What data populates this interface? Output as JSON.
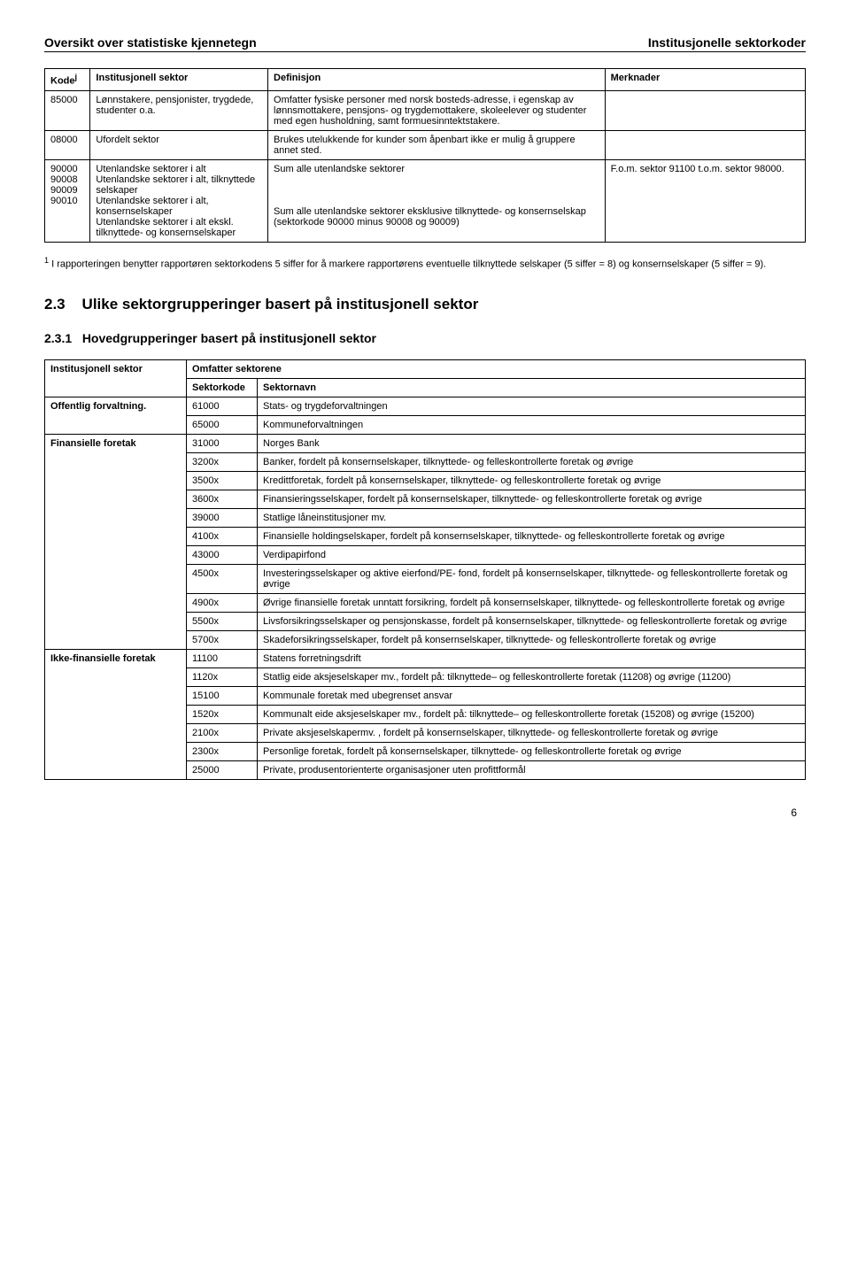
{
  "header": {
    "left": "Oversikt over statistiske kjennetegn",
    "right": "Institusjonelle sektorkoder"
  },
  "table1": {
    "head": {
      "kode": "Kode",
      "kode_sup": "j",
      "sektor": "Institusjonell sektor",
      "def": "Definisjon",
      "merk": "Merknader"
    },
    "rows": [
      {
        "kode": "85000",
        "sektor": "Lønnstakere, pensjonister, trygdede, studenter o.a.",
        "def": "Omfatter fysiske personer med norsk bosteds-adresse, i egenskap av lønnsmottakere, pensjons- og trygdemottakere, skoleelever og studenter med egen husholdning, samt formuesinntektstakere.",
        "merk": ""
      },
      {
        "kode": "08000",
        "sektor": "Ufordelt sektor",
        "def": "Brukes utelukkende for kunder som åpenbart ikke er mulig å gruppere annet sted.",
        "merk": ""
      }
    ],
    "group": {
      "kodes": [
        "90000",
        "90008",
        "90009",
        "90010"
      ],
      "sektors": [
        "Utenlandske sektorer i alt",
        "Utenlandske sektorer i alt, tilknyttede selskaper",
        "Utenlandske sektorer i alt, konsernselskaper",
        "Utenlandske sektorer i alt ekskl. tilknyttede- og konsernselskaper"
      ],
      "defs": [
        "Sum alle utenlandske sektorer",
        "",
        "",
        "Sum alle utenlandske sektorer eksklusive tilknyttede- og konsernselskap (sektorkode 90000 minus 90008 og 90009)"
      ],
      "merk": "F.o.m. sektor 91100 t.o.m. sektor 98000."
    }
  },
  "footnote": {
    "marker": "1",
    "text": " I rapporteringen benytter rapportøren sektorkodens 5 siffer for å markere rapportørens eventuelle tilknyttede selskaper (5 siffer  = 8) og konsernselskaper (5 siffer = 9)."
  },
  "section": {
    "num": "2.3",
    "title": "Ulike sektorgrupperinger basert på institusjonell sektor",
    "sub_num": "2.3.1",
    "sub_title": "Hovedgrupperinger basert på institusjonell sektor"
  },
  "table2": {
    "head": {
      "col1": "Institusjonell sektor",
      "col2_span": "Omfatter sektorene",
      "subcol2": "Sektorkode",
      "subcol3": "Sektornavn"
    },
    "groups": [
      {
        "name": "Offentlig forvaltning.",
        "rows": [
          {
            "code": "61000",
            "name": "Stats- og trygdeforvaltningen"
          },
          {
            "code": "65000",
            "name": "Kommuneforvaltningen"
          }
        ]
      },
      {
        "name": "Finansielle foretak",
        "rows": [
          {
            "code": "31000",
            "name": "Norges Bank"
          },
          {
            "code": "3200x",
            "name": "Banker, fordelt på konsernselskaper, tilknyttede- og felleskontrollerte foretak og øvrige"
          },
          {
            "code": "3500x",
            "name": "Kredittforetak, fordelt på konsernselskaper, tilknyttede- og felleskontrollerte foretak og øvrige"
          },
          {
            "code": "3600x",
            "name": "Finansieringsselskaper, fordelt på konsernselskaper, tilknyttede- og felleskontrollerte foretak og øvrige"
          },
          {
            "code": "39000",
            "name": "Statlige låneinstitusjoner mv."
          },
          {
            "code": "4100x",
            "name": "Finansielle holdingselskaper, fordelt på konsernselskaper, tilknyttede- og felleskontrollerte foretak og øvrige"
          },
          {
            "code": "43000",
            "name": "Verdipapirfond"
          },
          {
            "code": "4500x",
            "name": "Investeringsselskaper og aktive eierfond/PE- fond, fordelt på konsernselskaper, tilknyttede- og felleskontrollerte foretak og øvrige"
          },
          {
            "code": "4900x",
            "name": "Øvrige finansielle foretak unntatt forsikring, fordelt på konsernselskaper, tilknyttede- og felleskontrollerte foretak og øvrige"
          },
          {
            "code": "5500x",
            "name": "Livsforsikringsselskaper og pensjonskasse, fordelt på konsernselskaper, tilknyttede- og felleskontrollerte foretak og øvrige"
          },
          {
            "code": "5700x",
            "name": "Skadeforsikringsselskaper, fordelt på konsernselskaper, tilknyttede- og felleskontrollerte foretak og øvrige"
          }
        ]
      },
      {
        "name": "Ikke-finansielle foretak",
        "rows": [
          {
            "code": "11100",
            "name": "Statens forretningsdrift"
          },
          {
            "code": "1120x",
            "name": "Statlig eide aksjeselskaper mv., fordelt på: tilknyttede– og felleskontrollerte foretak (11208) og øvrige (11200)"
          },
          {
            "code": "15100",
            "name": "Kommunale foretak med ubegrenset ansvar"
          },
          {
            "code": "1520x",
            "name": "Kommunalt eide aksjeselskaper mv., fordelt på: tilknyttede– og felleskontrollerte foretak (15208) og øvrige (15200)"
          },
          {
            "code": "2100x",
            "name": "Private aksjeselskapermv. , fordelt på konsernselskaper, tilknyttede- og felleskontrollerte foretak og øvrige"
          },
          {
            "code": "2300x",
            "name": "Personlige foretak, fordelt på konsernselskaper, tilknyttede- og felleskontrollerte foretak og øvrige"
          },
          {
            "code": "25000",
            "name": "Private, produsentorienterte organisasjoner uten profittformål"
          }
        ]
      }
    ]
  },
  "page": "6"
}
